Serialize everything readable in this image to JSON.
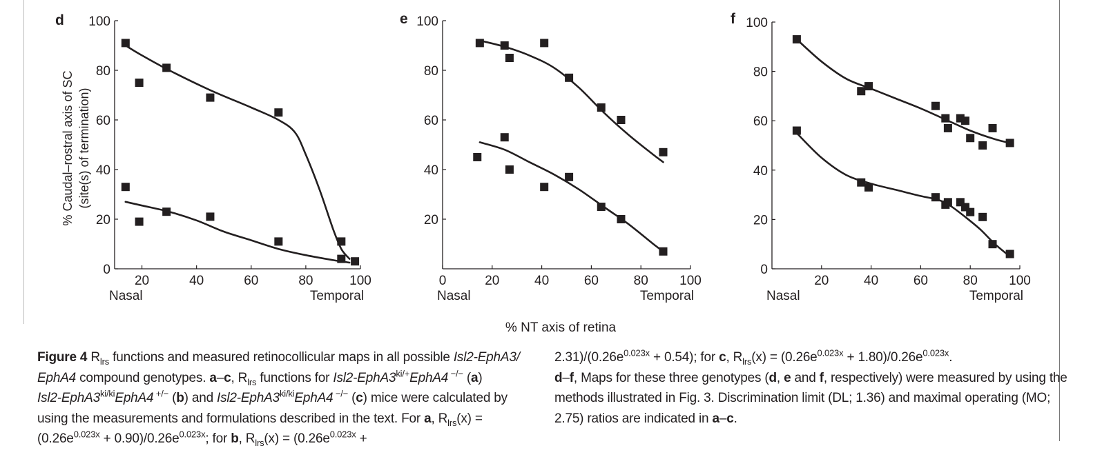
{
  "figure": {
    "shared_xlabel": "% NT axis of retina",
    "shared_ylabel_line1": "% Caudal–rostral axis of SC",
    "shared_ylabel_line2": "(site(s) of termination)",
    "caption_left": [
      [
        {
          "t": "Figure 4",
          "b": true
        },
        {
          "t": " R"
        },
        {
          "t": "lrs",
          "sub": true
        },
        {
          "t": " functions and measured retinocollicular maps in all possible "
        },
        {
          "t": "Isl2-EphA3/",
          "i": true
        }
      ],
      [
        {
          "t": "EphA4",
          "i": true
        },
        {
          "t": " compound genotypes. "
        },
        {
          "t": "a",
          "b": true
        },
        {
          "t": "–"
        },
        {
          "t": "c",
          "b": true
        },
        {
          "t": ", R"
        },
        {
          "t": "lrs",
          "sub": true
        },
        {
          "t": " functions for "
        },
        {
          "t": "Isl2-EphA3",
          "i": true
        },
        {
          "t": "ki/+",
          "sup": true
        },
        {
          "t": "EphA4",
          "i": true
        },
        {
          "t": " −/−",
          "sup": true
        },
        {
          "t": " ("
        },
        {
          "t": "a",
          "b": true
        },
        {
          "t": ")"
        }
      ],
      [
        {
          "t": "Isl2-EphA3",
          "i": true
        },
        {
          "t": "ki/ki",
          "sup": true
        },
        {
          "t": "EphA4",
          "i": true
        },
        {
          "t": " +/−",
          "sup": true
        },
        {
          "t": " ("
        },
        {
          "t": "b",
          "b": true
        },
        {
          "t": ") and "
        },
        {
          "t": "Isl2-EphA3",
          "i": true
        },
        {
          "t": "ki/ki",
          "sup": true
        },
        {
          "t": "EphA4",
          "i": true
        },
        {
          "t": " −/−",
          "sup": true
        },
        {
          "t": " ("
        },
        {
          "t": "c",
          "b": true
        },
        {
          "t": ") mice were calculated by"
        }
      ],
      [
        {
          "t": "using the measurements and formulations described in the text. For "
        },
        {
          "t": "a",
          "b": true
        },
        {
          "t": ", R"
        },
        {
          "t": "lrs",
          "sub": true
        },
        {
          "t": "(x) ="
        }
      ],
      [
        {
          "t": "(0.26e"
        },
        {
          "t": "0.023x",
          "sup": true
        },
        {
          "t": " + 0.90)/0.26e"
        },
        {
          "t": "0.023x",
          "sup": true
        },
        {
          "t": "; for "
        },
        {
          "t": "b",
          "b": true
        },
        {
          "t": ", R"
        },
        {
          "t": "lrs",
          "sub": true
        },
        {
          "t": "(x) = (0.26e"
        },
        {
          "t": "0.023x",
          "sup": true
        },
        {
          "t": " +"
        }
      ]
    ],
    "caption_right": [
      [
        {
          "t": "2.31)/(0.26e"
        },
        {
          "t": "0.023x",
          "sup": true
        },
        {
          "t": " + 0.54); for "
        },
        {
          "t": "c",
          "b": true
        },
        {
          "t": ", R"
        },
        {
          "t": "lrs",
          "sub": true
        },
        {
          "t": "(x) = (0.26e"
        },
        {
          "t": "0.023x",
          "sup": true
        },
        {
          "t": " + 1.80)/0.26e"
        },
        {
          "t": "0.023x",
          "sup": true
        },
        {
          "t": "."
        }
      ],
      [
        {
          "t": "d",
          "b": true
        },
        {
          "t": "–"
        },
        {
          "t": "f",
          "b": true
        },
        {
          "t": ", Maps for these three genotypes ("
        },
        {
          "t": "d",
          "b": true
        },
        {
          "t": ", "
        },
        {
          "t": "e",
          "b": true
        },
        {
          "t": " and "
        },
        {
          "t": "f",
          "b": true
        },
        {
          "t": ", respectively) were measured by using the"
        }
      ],
      [
        {
          "t": "methods illustrated in Fig. 3. Discrimination limit (DL; 1.36) and maximal operating (MO;"
        }
      ],
      [
        {
          "t": "2.75) ratios are indicated in "
        },
        {
          "t": "a",
          "b": true
        },
        {
          "t": "–"
        },
        {
          "t": "c",
          "b": true
        },
        {
          "t": "."
        }
      ]
    ]
  },
  "chart_data": [
    {
      "type": "scatter",
      "panel": "d",
      "xlim": [
        10,
        100
      ],
      "ylim": [
        0,
        100
      ],
      "xticks": [
        20,
        40,
        60,
        80,
        100
      ],
      "yticks": [
        0,
        20,
        40,
        60,
        80,
        100
      ],
      "x_end_labels": [
        "Nasal",
        "Temporal"
      ],
      "upper_points": [
        [
          14,
          91
        ],
        [
          19,
          75
        ],
        [
          29,
          81
        ],
        [
          45,
          69
        ],
        [
          70,
          63
        ],
        [
          93,
          11
        ],
        [
          98,
          3
        ]
      ],
      "lower_points": [
        [
          14,
          33
        ],
        [
          19,
          19
        ],
        [
          29,
          23
        ],
        [
          45,
          21
        ],
        [
          70,
          11
        ],
        [
          93,
          4
        ]
      ],
      "upper_fit": [
        [
          14,
          90
        ],
        [
          20,
          86
        ],
        [
          30,
          80
        ],
        [
          45,
          72
        ],
        [
          60,
          65
        ],
        [
          70,
          60
        ],
        [
          76,
          55
        ],
        [
          80,
          46
        ],
        [
          85,
          32
        ],
        [
          90,
          16
        ],
        [
          93,
          8
        ],
        [
          96,
          4
        ]
      ],
      "lower_fit": [
        [
          14,
          27
        ],
        [
          20,
          25.5
        ],
        [
          30,
          23
        ],
        [
          40,
          19.5
        ],
        [
          50,
          15
        ],
        [
          60,
          11.5
        ],
        [
          70,
          8
        ],
        [
          80,
          5.5
        ],
        [
          90,
          3.5
        ],
        [
          96,
          2.5
        ]
      ]
    },
    {
      "type": "scatter",
      "panel": "e",
      "xlim": [
        0,
        100
      ],
      "ylim": [
        0,
        100
      ],
      "xticks": [
        0,
        20,
        40,
        60,
        80,
        100
      ],
      "yticks": [
        20,
        40,
        60,
        80,
        100
      ],
      "x_end_labels": [
        "Nasal",
        "Temporal"
      ],
      "upper_points": [
        [
          15,
          91
        ],
        [
          25,
          90
        ],
        [
          27,
          85
        ],
        [
          41,
          91
        ],
        [
          51,
          77
        ],
        [
          64,
          65
        ],
        [
          72,
          60
        ],
        [
          89,
          47
        ]
      ],
      "lower_points": [
        [
          14,
          45
        ],
        [
          25,
          53
        ],
        [
          27,
          40
        ],
        [
          41,
          33
        ],
        [
          51,
          37
        ],
        [
          64,
          25
        ],
        [
          72,
          20
        ],
        [
          89,
          7
        ]
      ],
      "upper_fit": [
        [
          15,
          92
        ],
        [
          25,
          89.5
        ],
        [
          35,
          86
        ],
        [
          45,
          81
        ],
        [
          55,
          73
        ],
        [
          65,
          63
        ],
        [
          75,
          54
        ],
        [
          85,
          46
        ],
        [
          89,
          43
        ]
      ],
      "lower_fit": [
        [
          15,
          51
        ],
        [
          25,
          48
        ],
        [
          35,
          43
        ],
        [
          45,
          38
        ],
        [
          55,
          32
        ],
        [
          65,
          25
        ],
        [
          75,
          18
        ],
        [
          85,
          10
        ],
        [
          89,
          7
        ]
      ]
    },
    {
      "type": "scatter",
      "panel": "f",
      "xlim": [
        0,
        100
      ],
      "ylim": [
        0,
        100
      ],
      "xticks": [
        20,
        40,
        60,
        80,
        100
      ],
      "yticks": [
        0,
        20,
        40,
        60,
        80,
        100
      ],
      "x_end_labels": [
        "Nasal",
        "Temporal"
      ],
      "upper_points": [
        [
          10,
          93
        ],
        [
          36,
          72
        ],
        [
          39,
          74
        ],
        [
          66,
          66
        ],
        [
          70,
          61
        ],
        [
          71,
          57
        ],
        [
          76,
          61
        ],
        [
          78,
          60
        ],
        [
          80,
          53
        ],
        [
          85,
          50
        ],
        [
          89,
          57
        ],
        [
          96,
          51
        ]
      ],
      "lower_points": [
        [
          10,
          56
        ],
        [
          36,
          35
        ],
        [
          39,
          33
        ],
        [
          66,
          29
        ],
        [
          70,
          26
        ],
        [
          71,
          27
        ],
        [
          76,
          27
        ],
        [
          78,
          25
        ],
        [
          80,
          23
        ],
        [
          85,
          21
        ],
        [
          89,
          10
        ],
        [
          96,
          6
        ]
      ],
      "upper_fit": [
        [
          10,
          93
        ],
        [
          20,
          84
        ],
        [
          30,
          77
        ],
        [
          40,
          73
        ],
        [
          50,
          69
        ],
        [
          60,
          65
        ],
        [
          70,
          60.5
        ],
        [
          80,
          56
        ],
        [
          90,
          52.5
        ],
        [
          96,
          51
        ]
      ],
      "lower_fit": [
        [
          10,
          55
        ],
        [
          20,
          45
        ],
        [
          30,
          38
        ],
        [
          40,
          34.5
        ],
        [
          50,
          32
        ],
        [
          60,
          29.5
        ],
        [
          67,
          28
        ],
        [
          72,
          25.5
        ],
        [
          78,
          21
        ],
        [
          84,
          16
        ],
        [
          90,
          10
        ],
        [
          96,
          5
        ]
      ]
    }
  ]
}
